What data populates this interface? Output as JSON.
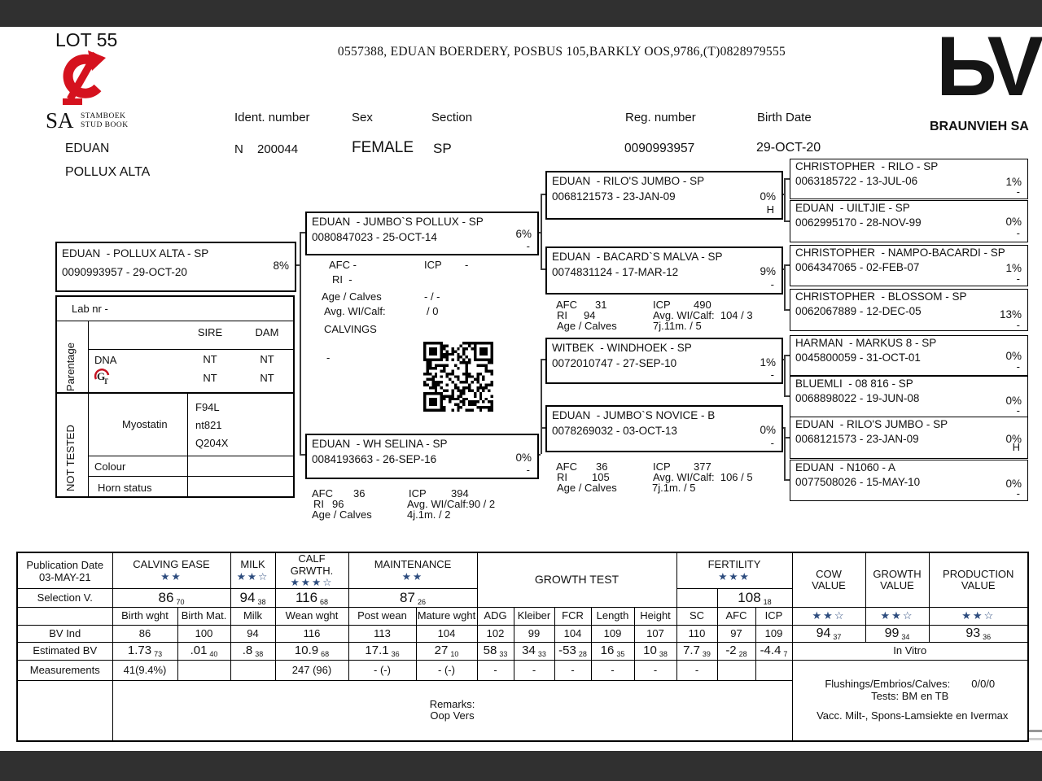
{
  "header": {
    "lot": "LOT 55",
    "address": "0557388,  EDUAN BOERDERY, POSBUS 105,BARKLY OOS,9786,(T)0828979555",
    "sa_logo": {
      "sa": "SA",
      "line1": "STAMBOEK",
      "line2": "STUD BOOK"
    },
    "brand": {
      "glyph": "ЬV",
      "name": "BRAUNVIEH SA"
    },
    "labels": {
      "ident": "Ident. number",
      "sex": "Sex",
      "section": "Section",
      "reg": "Reg. number",
      "birth": "Birth Date"
    },
    "values": {
      "ident_prefix": "N",
      "ident": "200044",
      "sex": "FEMALE",
      "section": "SP",
      "reg": "0090993957",
      "birth": "29-OCT-20"
    },
    "name_line1": "EDUAN",
    "name_line2": "POLLUX ALTA"
  },
  "panel": {
    "lab_nr": "Lab nr  -",
    "parentage": "Parentage",
    "sire": "SIRE",
    "dam": "DAM",
    "dna": "DNA",
    "dna_sire": "NT",
    "dna_dam": "NT",
    "gt_sire": "NT",
    "gt_dam": "NT",
    "not_tested": "NOT TESTED",
    "myostatin": "Myostatin",
    "myo1": "F94L",
    "myo2": "nt821",
    "myo3": "Q204X",
    "colour": "Colour",
    "horn": "Horn status"
  },
  "pedigree": {
    "animal": {
      "name": "EDUAN  - POLLUX ALTA - SP",
      "reg": "0090993957 -  29-OCT-20",
      "pct": "8%",
      "flag": ""
    },
    "sire": {
      "name": "EDUAN  - JUMBO`S POLLUX - SP",
      "reg": "0080847023 - 25-OCT-14",
      "pct": "6%",
      "flag": "-"
    },
    "dam": {
      "name": "EDUAN  - WH SELINA - SP",
      "reg": "0084193663 - 26-SEP-16",
      "pct": "0%",
      "flag": "-"
    },
    "gp": [
      {
        "name": "EDUAN  - RILO'S JUMBO - SP",
        "reg": "0068121573 - 23-JAN-09",
        "pct": "0%",
        "flag": "H"
      },
      {
        "name": "EDUAN  - BACARD`S MALVA - SP",
        "reg": "0074831124 - 17-MAR-12",
        "pct": "9%",
        "flag": "-"
      },
      {
        "name": "WITBEK  - WINDHOEK - SP",
        "reg": "0072010747 - 27-SEP-10",
        "pct": "1%",
        "flag": "-"
      },
      {
        "name": "EDUAN  - JUMBO`S NOVICE - B",
        "reg": "0078269032 - 03-OCT-13",
        "pct": "0%",
        "flag": "-"
      }
    ],
    "ggp": [
      {
        "name": "CHRISTOPHER  - RILO - SP",
        "reg": "0063185722 - 13-JUL-06",
        "pct": "1%",
        "flag": "-"
      },
      {
        "name": "EDUAN  - UILTJIE - SP",
        "reg": "0062995170 - 28-NOV-99",
        "pct": "0%",
        "flag": "-"
      },
      {
        "name": "CHRISTOPHER  - NAMPO-BACARDI - SP",
        "reg": "0064347065 - 02-FEB-07",
        "pct": "1%",
        "flag": "-"
      },
      {
        "name": "CHRISTOPHER  - BLOSSOM - SP",
        "reg": "0062067889 - 12-DEC-05",
        "pct": "13%",
        "flag": "-"
      },
      {
        "name": "HARMAN  - MARKUS 8 - SP",
        "reg": "0045800059 - 31-OCT-01",
        "pct": "0%",
        "flag": "-"
      },
      {
        "name": "BLUEMLI  - 08 816 - SP",
        "reg": "0068898022 - 19-JUN-08",
        "pct": "0%",
        "flag": "-"
      },
      {
        "name": "EDUAN  - RILO'S JUMBO - SP",
        "reg": "0068121573 - 23-JAN-09",
        "pct": "0%",
        "flag": "H"
      },
      {
        "name": "EDUAN  - N1060 - A",
        "reg": "0077508026 - 15-MAY-10",
        "pct": "0%",
        "flag": "-"
      }
    ],
    "sire_stats": {
      "afc": "AFC -",
      "icp_label": "ICP",
      "icp_value": "-",
      "ri": "RI  -",
      "age_label": "Age / Calves",
      "age_value": "- / -",
      "avg_label": "Avg. WI/Calf:",
      "avg_value": "/ 0",
      "calvings": "CALVINGS",
      "dash": "-"
    },
    "dam_stats": {
      "afc_label": "AFC",
      "afc": "36",
      "icp_label": "ICP",
      "icp": "394",
      "ri_label": "RI",
      "ri": "96",
      "avg": "Avg. WI/Calf:90 / 2",
      "age_label": "Age / Calves",
      "age": "4j.1m. / 2"
    },
    "gp2_stats": {
      "afc_label": "AFC",
      "afc": "31",
      "icp_label": "ICP",
      "icp": "490",
      "ri_label": "RI",
      "ri": "94",
      "avg": "Avg. WI/Calf:  104 / 3",
      "age_label": "Age / Calves",
      "age": "7j.11m. / 5"
    },
    "gp4_stats": {
      "afc_label": "AFC",
      "afc": "36",
      "icp_label": "ICP",
      "icp": "377",
      "ri_label": "RI",
      "ri": "105",
      "avg": "Avg. WI/Calf:  106 / 5",
      "age_label": "Age / Calves",
      "age": "7j.1m. / 5"
    }
  },
  "table": {
    "pub_label": "Publication Date",
    "pub_date": "03-MAY-21",
    "selection_label": "Selection V.",
    "bv_label": "BV Ind",
    "est_label": "Estimated BV",
    "meas_label": "Measurements",
    "groups": {
      "calving": "CALVING EASE",
      "milk": "MILK",
      "calf": "CALF GRWTH.",
      "maint": "MAINTENANCE",
      "growth_test": "GROWTH TEST",
      "fert": "FERTILITY",
      "cow_1": "COW",
      "cow_2": "VALUE",
      "growth_1": "GROWTH",
      "growth_2": "VALUE",
      "prod_1": "PRODUCTION",
      "prod_2": "VALUE"
    },
    "stars": {
      "calving": "★★",
      "milk": "★★☆",
      "calf": "★★★☆",
      "maint": "★★",
      "fert": "★★★",
      "cow": "★★☆",
      "growth": "★★☆",
      "prod": "★★☆"
    },
    "selection": {
      "calving": "86",
      "calving_a": "70",
      "milk": "94",
      "milk_a": "38",
      "calf": "116",
      "calf_a": "68",
      "maint": "87",
      "maint_a": "26",
      "fert": "108",
      "fert_a": "18"
    },
    "cols": [
      "Birth wght",
      "Birth Mat.",
      "Milk",
      "Wean wght",
      "Post wean",
      "Mature wght",
      "ADG",
      "Kleiber",
      "FCR",
      "Length",
      "Height",
      "SC",
      "AFC",
      "ICP"
    ],
    "bv": [
      "86",
      "100",
      "94",
      "116",
      "113",
      "104",
      "102",
      "99",
      "104",
      "109",
      "107",
      "110",
      "97",
      "109"
    ],
    "values": {
      "cow": "94",
      "cow_a": "37",
      "growth": "99",
      "growth_a": "34",
      "prod": "93",
      "prod_a": "36"
    },
    "est": [
      {
        "v": "1.73",
        "a": "73"
      },
      {
        "v": ".01",
        "a": "40"
      },
      {
        "v": ".8",
        "a": "38"
      },
      {
        "v": "10.9",
        "a": "68"
      },
      {
        "v": "17.1",
        "a": "36"
      },
      {
        "v": "27",
        "a": "10"
      },
      {
        "v": "58",
        "a": "33"
      },
      {
        "v": "34",
        "a": "33"
      },
      {
        "v": "-53",
        "a": "28"
      },
      {
        "v": "16",
        "a": "35"
      },
      {
        "v": "10",
        "a": "38"
      },
      {
        "v": "7.7",
        "a": "39"
      },
      {
        "v": "-2",
        "a": "28"
      },
      {
        "v": "-4.4",
        "a": "7"
      }
    ],
    "in_vitro": "In Vitro",
    "meas": [
      "41(9.4%)",
      "",
      "",
      "247  (96)",
      "-  (-)",
      "-  (-)",
      "-",
      "-",
      "-",
      "-",
      "-",
      "-",
      "",
      ""
    ],
    "flushings_label": "Flushings/Embrios/Calves:",
    "flushings_value": "0/0/0",
    "tests": "Tests: BM en TB",
    "vacc": "Vacc. Milt-, Spons-Lamsiekte en Ivermax",
    "remarks_label": "Remarks:",
    "remarks": "Oop Vers"
  }
}
